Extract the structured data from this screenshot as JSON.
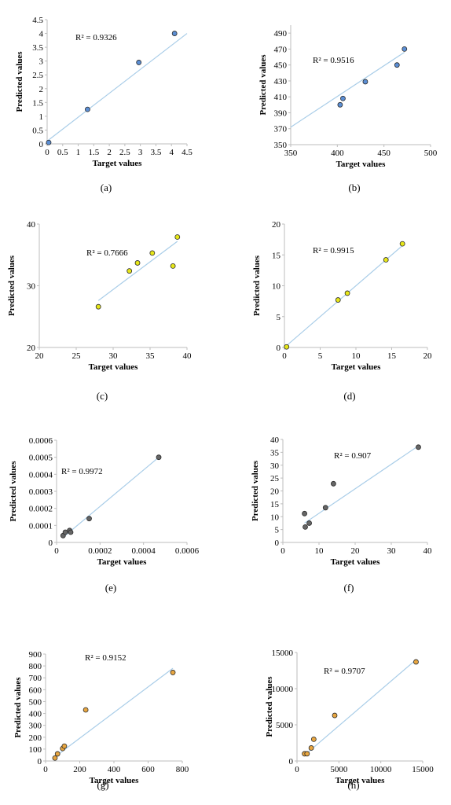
{
  "chart_data": [
    {
      "type": "scatter",
      "caption": "(a)",
      "xlabel": "Target values",
      "ylabel": "Predicted values",
      "annotation": "R² = 0.9326",
      "xlim": [
        0,
        4.5
      ],
      "ylim": [
        0,
        4.5
      ],
      "xticks": [
        0,
        0.5,
        1,
        1.5,
        2,
        2.5,
        3,
        3.5,
        4,
        4.5
      ],
      "yticks": [
        0,
        0.5,
        1,
        1.5,
        2,
        2.5,
        3,
        3.5,
        4,
        4.5
      ],
      "xtick_labels": [
        "0",
        "0.5",
        "1",
        "1.5",
        "2",
        "2.5",
        "3",
        "3.5",
        "4",
        "4.5"
      ],
      "ytick_labels": [
        "0",
        "0.5",
        "1",
        "1.5",
        "2",
        "2.5",
        "3",
        "3.5",
        "4",
        "4.5"
      ],
      "marker_color": "#5b8ed4",
      "trendline": {
        "x": [
          0,
          4.5
        ],
        "y": [
          0.1,
          4.0
        ]
      },
      "points": [
        {
          "x": 0.05,
          "y": 0.05
        },
        {
          "x": 1.3,
          "y": 1.25
        },
        {
          "x": 2.95,
          "y": 2.95
        },
        {
          "x": 4.1,
          "y": 4.0
        }
      ]
    },
    {
      "type": "scatter",
      "caption": "(b)",
      "xlabel": "Target values",
      "ylabel": "Predicted values",
      "annotation": "R² = 0.9516",
      "xlim": [
        350,
        500
      ],
      "ylim": [
        350,
        500
      ],
      "xticks": [
        350,
        400,
        450,
        500
      ],
      "yticks": [
        350,
        370,
        390,
        410,
        430,
        450,
        470,
        490
      ],
      "xtick_labels": [
        "350",
        "400",
        "450",
        "500"
      ],
      "ytick_labels": [
        "350",
        "370",
        "390",
        "410",
        "430",
        "450",
        "470",
        "490"
      ],
      "marker_color": "#5b8ed4",
      "trendline": {
        "x": [
          350,
          472
        ],
        "y": [
          372,
          466
        ]
      },
      "points": [
        {
          "x": 403,
          "y": 400
        },
        {
          "x": 406,
          "y": 408
        },
        {
          "x": 430,
          "y": 429
        },
        {
          "x": 464,
          "y": 450
        },
        {
          "x": 472,
          "y": 470
        }
      ]
    },
    {
      "type": "scatter",
      "caption": "(c)",
      "xlabel": "Target values",
      "ylabel": "Predicted values",
      "annotation": "R² = 0.7666",
      "xlim": [
        20,
        40
      ],
      "ylim": [
        20,
        40
      ],
      "xticks": [
        20,
        25,
        30,
        35,
        40
      ],
      "yticks": [
        20,
        30,
        40
      ],
      "xtick_labels": [
        "20",
        "25",
        "30",
        "35",
        "40"
      ],
      "ytick_labels": [
        "20",
        "30",
        "40"
      ],
      "marker_color": "#e6e619",
      "trendline": {
        "x": [
          28,
          38.7
        ],
        "y": [
          27.6,
          37.2
        ]
      },
      "points": [
        {
          "x": 28,
          "y": 26.6
        },
        {
          "x": 32.2,
          "y": 32.4
        },
        {
          "x": 33.3,
          "y": 33.7
        },
        {
          "x": 35.3,
          "y": 35.3
        },
        {
          "x": 38.1,
          "y": 33.2
        },
        {
          "x": 38.7,
          "y": 37.9
        }
      ]
    },
    {
      "type": "scatter",
      "caption": "(d)",
      "xlabel": "Target values",
      "ylabel": "Predicted values",
      "annotation": "R² = 0.9915",
      "xlim": [
        0,
        20
      ],
      "ylim": [
        0,
        20
      ],
      "xticks": [
        0,
        5,
        10,
        15,
        20
      ],
      "yticks": [
        0,
        5,
        10,
        15,
        20
      ],
      "xtick_labels": [
        "0",
        "5",
        "10",
        "15",
        "20"
      ],
      "ytick_labels": [
        "0",
        "5",
        "10",
        "15",
        "20"
      ],
      "marker_color": "#e6e619",
      "trendline": {
        "x": [
          0.2,
          16.5
        ],
        "y": [
          0.2,
          16.5
        ]
      },
      "points": [
        {
          "x": 0.3,
          "y": 0.1
        },
        {
          "x": 7.5,
          "y": 7.7
        },
        {
          "x": 8.8,
          "y": 8.8
        },
        {
          "x": 14.2,
          "y": 14.2
        },
        {
          "x": 16.5,
          "y": 16.8
        }
      ]
    },
    {
      "type": "scatter",
      "caption": "(e)",
      "xlabel": "Target values",
      "ylabel": "Predicted values",
      "annotation": "R² = 0.9972",
      "xlim": [
        0,
        0.0006
      ],
      "ylim": [
        0,
        0.0006
      ],
      "xticks": [
        0,
        0.0002,
        0.0004,
        0.0006
      ],
      "yticks": [
        0,
        0.0001,
        0.0002,
        0.0003,
        0.0004,
        0.0005,
        0.0006
      ],
      "xtick_labels": [
        "0",
        "0.0002",
        "0.0004",
        "0.0006"
      ],
      "ytick_labels": [
        "0",
        "0.0001",
        "0.0002",
        "0.0003",
        "0.0004",
        "0.0005",
        "0.0006"
      ],
      "marker_color": "#666666",
      "trendline": {
        "x": [
          3e-05,
          0.00047
        ],
        "y": [
          3e-05,
          0.0005
        ]
      },
      "points": [
        {
          "x": 3e-05,
          "y": 4e-05
        },
        {
          "x": 4e-05,
          "y": 6e-05
        },
        {
          "x": 6e-05,
          "y": 7e-05
        },
        {
          "x": 6.5e-05,
          "y": 6e-05
        },
        {
          "x": 0.00015,
          "y": 0.00014
        },
        {
          "x": 0.00047,
          "y": 0.0005
        }
      ]
    },
    {
      "type": "scatter",
      "caption": "(f)",
      "xlabel": "Target values",
      "ylabel": "Predicted values",
      "annotation": "R² = 0.907",
      "xlim": [
        0,
        40
      ],
      "ylim": [
        0,
        40
      ],
      "xticks": [
        0,
        10,
        20,
        30,
        40
      ],
      "yticks": [
        0,
        5,
        10,
        15,
        20,
        25,
        30,
        35,
        40
      ],
      "xtick_labels": [
        "0",
        "10",
        "20",
        "30",
        "40"
      ],
      "ytick_labels": [
        "0",
        "5",
        "10",
        "15",
        "20",
        "25",
        "30",
        "35",
        "40"
      ],
      "marker_color": "#666666",
      "trendline": {
        "x": [
          6,
          37.5
        ],
        "y": [
          7.5,
          37.5
        ]
      },
      "points": [
        {
          "x": 6,
          "y": 11.2
        },
        {
          "x": 6.2,
          "y": 6
        },
        {
          "x": 7.3,
          "y": 7.5
        },
        {
          "x": 11.8,
          "y": 13.5
        },
        {
          "x": 14,
          "y": 22.8
        },
        {
          "x": 37.5,
          "y": 37
        }
      ]
    },
    {
      "type": "scatter",
      "caption": "(g)",
      "xlabel": "Target values",
      "ylabel": "Predicted values",
      "annotation": "R² = 0.9152",
      "xlim": [
        0,
        800
      ],
      "ylim": [
        0,
        900
      ],
      "xticks": [
        0,
        200,
        400,
        600,
        800
      ],
      "yticks": [
        0,
        100,
        200,
        300,
        400,
        500,
        600,
        700,
        800,
        900
      ],
      "xtick_labels": [
        "0",
        "200",
        "400",
        "600",
        "800"
      ],
      "ytick_labels": [
        "0",
        "100",
        "200",
        "300",
        "400",
        "500",
        "600",
        "700",
        "800",
        "900"
      ],
      "marker_color": "#e8a640",
      "trendline": {
        "x": [
          50,
          745
        ],
        "y": [
          30,
          780
        ]
      },
      "points": [
        {
          "x": 55,
          "y": 25
        },
        {
          "x": 70,
          "y": 60
        },
        {
          "x": 100,
          "y": 105
        },
        {
          "x": 110,
          "y": 125
        },
        {
          "x": 235,
          "y": 430
        },
        {
          "x": 745,
          "y": 745
        }
      ]
    },
    {
      "type": "scatter",
      "caption": "(h)",
      "xlabel": "Target values",
      "ylabel": "Predicted values",
      "annotation": "R² = 0.9707",
      "xlim": [
        0,
        15000
      ],
      "ylim": [
        0,
        15000
      ],
      "xticks": [
        0,
        5000,
        10000,
        15000
      ],
      "yticks": [
        0,
        5000,
        10000,
        15000
      ],
      "xtick_labels": [
        "0",
        "5000",
        "10000",
        "15000"
      ],
      "ytick_labels": [
        "0",
        "5000",
        "10000",
        "15000"
      ],
      "marker_color": "#e8a640",
      "trendline": {
        "x": [
          800,
          14200
        ],
        "y": [
          700,
          14000
        ]
      },
      "points": [
        {
          "x": 900,
          "y": 1000
        },
        {
          "x": 1200,
          "y": 1000
        },
        {
          "x": 1700,
          "y": 1800
        },
        {
          "x": 2000,
          "y": 3000
        },
        {
          "x": 4500,
          "y": 6300
        },
        {
          "x": 14200,
          "y": 13700
        }
      ]
    }
  ]
}
